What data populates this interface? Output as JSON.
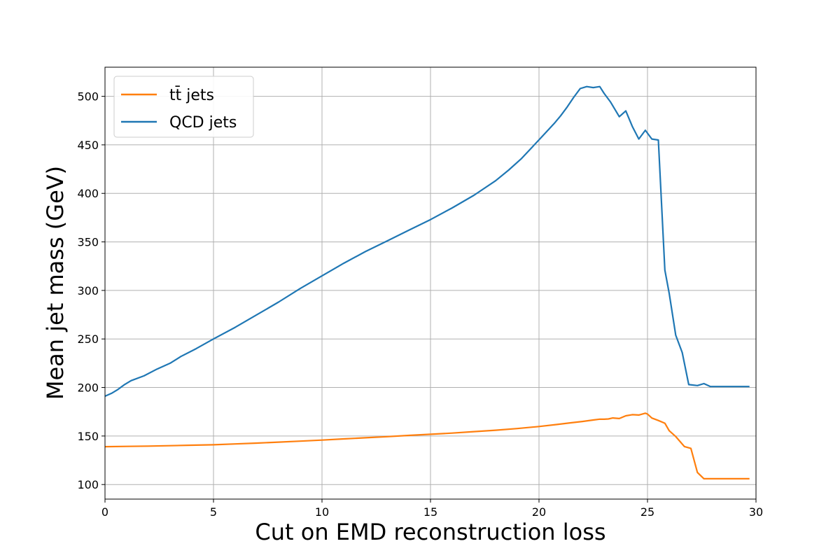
{
  "chart_data": {
    "type": "line",
    "xlabel": "Cut on EMD reconstruction loss",
    "ylabel": "Mean jet mass (GeV)",
    "xlim": [
      0,
      30
    ],
    "ylim": [
      85,
      530
    ],
    "xticks": [
      "0",
      "5",
      "10",
      "15",
      "20",
      "25",
      "30"
    ],
    "yticks": [
      "100",
      "150",
      "200",
      "250",
      "300",
      "350",
      "400",
      "450",
      "500"
    ],
    "grid": true,
    "legend_position": "upper left",
    "series": [
      {
        "name": "tt̄ jets",
        "color": "#ff7f0e",
        "x": [
          0,
          1,
          2,
          3,
          4,
          5,
          6,
          7,
          8,
          9,
          10,
          11,
          12,
          13,
          14,
          15,
          16,
          17,
          18,
          19,
          20,
          20.8,
          21.5,
          22,
          22.5,
          22.8,
          23,
          23.2,
          23.4,
          23.7,
          24,
          24.3,
          24.6,
          24.9,
          25,
          25.2,
          25.5,
          25.8,
          26,
          26.3,
          26.7,
          27,
          27.3,
          27.6,
          28,
          29,
          29.7
        ],
        "y": [
          139,
          139.3,
          139.6,
          140,
          140.5,
          141,
          141.8,
          142.7,
          143.7,
          144.7,
          145.8,
          147,
          148.2,
          149.3,
          150.6,
          151.8,
          153,
          154.5,
          156,
          157.7,
          159.8,
          161.8,
          163.7,
          165,
          166.5,
          167.4,
          167.3,
          167.6,
          168.6,
          168,
          170.8,
          172,
          171.6,
          173.5,
          172.6,
          168.5,
          166,
          163.2,
          155.5,
          149.5,
          139.2,
          137.2,
          112.5,
          106,
          106,
          106,
          106
        ]
      },
      {
        "name": "QCD jets",
        "color": "#1f77b4",
        "x": [
          0,
          0.3,
          0.6,
          0.9,
          1.2,
          1.8,
          2.4,
          3,
          3.5,
          4.2,
          5,
          6,
          7,
          8,
          9,
          10,
          11,
          12,
          13,
          14,
          15,
          16,
          17,
          18,
          18.6,
          19.2,
          19.7,
          20.2,
          20.7,
          21,
          21.3,
          21.6,
          21.9,
          22.2,
          22.5,
          22.8,
          23,
          23.3,
          23.7,
          24,
          24.3,
          24.6,
          24.9,
          25.2,
          25.5,
          25.8,
          26,
          26.3,
          26.6,
          26.9,
          27.3,
          27.6,
          27.9,
          28.2,
          29,
          29.7
        ],
        "y": [
          191,
          194,
          198,
          203,
          207,
          212,
          219,
          225,
          232,
          240,
          250,
          262,
          275,
          288,
          302,
          315,
          328,
          340,
          351,
          362,
          373,
          385,
          398,
          413,
          424,
          436,
          448,
          460,
          472,
          480,
          489,
          499,
          508,
          510,
          509,
          510,
          503,
          494,
          479,
          485,
          469,
          456,
          465,
          456,
          455,
          321,
          297,
          254,
          236,
          203,
          202,
          204,
          201,
          201,
          201,
          201
        ]
      }
    ]
  }
}
